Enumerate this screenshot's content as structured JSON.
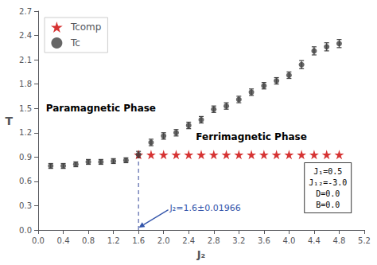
{
  "chart_data": {
    "type": "scatter",
    "xlabel": "J₂",
    "ylabel": "T",
    "xlim": [
      0.0,
      5.2
    ],
    "ylim": [
      0.0,
      2.7
    ],
    "xticks": [
      {
        "value": 0.0,
        "label": "0.0"
      },
      0.4,
      0.8,
      1.2,
      1.6,
      {
        "value": 2.0,
        "label": "2.0"
      },
      2.4,
      2.8,
      3.2,
      3.6,
      {
        "value": 4.0,
        "label": "4.0"
      },
      4.4,
      4.8,
      5.2
    ],
    "yticks": [
      {
        "value": 0.0,
        "label": "0.0"
      },
      0.3,
      0.6,
      0.9,
      1.2,
      1.5,
      1.8,
      2.1,
      2.4,
      2.7
    ],
    "grid": false,
    "legend": "upper left",
    "series": [
      {
        "name": "Tcomp",
        "type": "scatter",
        "marker": "star",
        "color": "#cc0000",
        "x": [
          1.6,
          1.8,
          2.0,
          2.2,
          2.4,
          2.6,
          2.8,
          3.0,
          3.2,
          3.4,
          3.6,
          3.8,
          4.0,
          4.2,
          4.4,
          4.6,
          4.8
        ],
        "values": [
          0.93,
          0.93,
          0.93,
          0.93,
          0.93,
          0.93,
          0.93,
          0.93,
          0.93,
          0.93,
          0.93,
          0.93,
          0.93,
          0.93,
          0.93,
          0.93,
          0.93
        ]
      },
      {
        "name": "Tc",
        "type": "scatter",
        "marker": "circle",
        "color": "#404040",
        "x": [
          0.2,
          0.4,
          0.6,
          0.8,
          1.0,
          1.2,
          1.4,
          1.6,
          1.8,
          2.0,
          2.2,
          2.4,
          2.6,
          2.8,
          3.0,
          3.2,
          3.4,
          3.6,
          3.8,
          4.0,
          4.2,
          4.4,
          4.6,
          4.8
        ],
        "values": [
          0.79,
          0.79,
          0.81,
          0.84,
          0.84,
          0.85,
          0.86,
          0.93,
          1.08,
          1.16,
          1.2,
          1.29,
          1.36,
          1.49,
          1.53,
          1.61,
          1.7,
          1.78,
          1.84,
          1.91,
          2.04,
          2.21,
          2.26,
          2.3
        ],
        "errors": [
          0.03,
          0.03,
          0.03,
          0.03,
          0.03,
          0.03,
          0.03,
          0.04,
          0.04,
          0.04,
          0.04,
          0.04,
          0.04,
          0.04,
          0.04,
          0.04,
          0.04,
          0.04,
          0.04,
          0.04,
          0.05,
          0.05,
          0.05,
          0.05
        ]
      }
    ],
    "lines": [
      {
        "x": 1.6,
        "y": [
          0.0,
          0.93
        ],
        "color": "#5566aa",
        "line_style": "dashed"
      }
    ],
    "annotations": [
      {
        "text": "J₂=1.6±0.01966",
        "x": 2.1,
        "y": 0.22,
        "arrow_to": [
          1.605,
          0.03
        ],
        "color": "#3355aa"
      },
      {
        "text": "Paramagnetic Phase",
        "x": 1.0,
        "y": 1.5,
        "color": "black"
      },
      {
        "text": "Ferrimagnetic Phase",
        "x": 3.4,
        "y": 1.15,
        "color": "black"
      },
      {
        "text": "J₁=0.5\nJ₁₂=-3.0\nD=0.0\nB=0.0",
        "x": 4.62,
        "y": 0.52,
        "color": "black",
        "boxed": true
      }
    ]
  }
}
